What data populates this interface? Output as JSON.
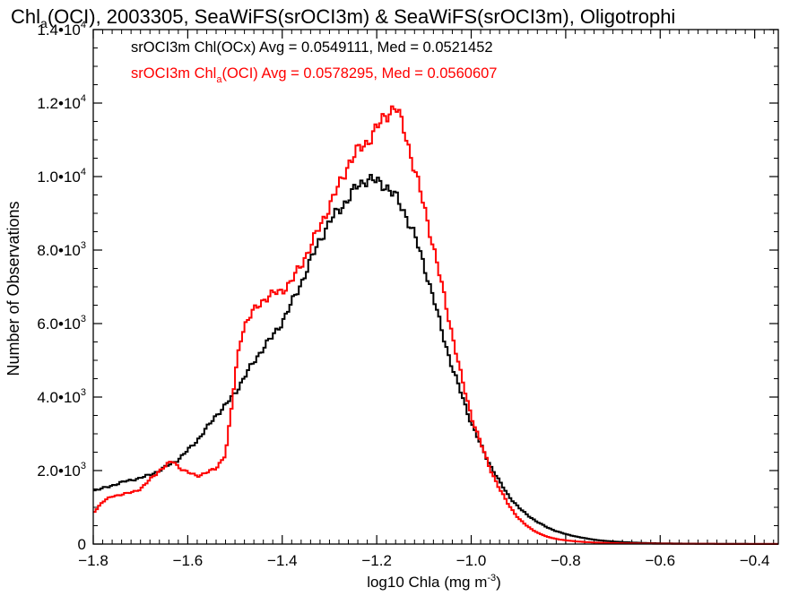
{
  "chart_data": {
    "type": "line",
    "title": {
      "prefix": "Chl",
      "subscript": "a",
      "rest": "(OCI), 2003305, SeaWiFS(srOCI3m) & SeaWiFS(srOCI3m), Oligotrophi"
    },
    "xlabel": {
      "main": "log10 Chla (mg m",
      "sup": "-3",
      "close": ")"
    },
    "ylabel": "Number of Observations",
    "xlim": [
      -1.8,
      -0.35
    ],
    "ylim": [
      0,
      14000
    ],
    "x_ticks": [
      {
        "value": -1.8,
        "label": "−1.8"
      },
      {
        "value": -1.6,
        "label": "−1.6"
      },
      {
        "value": -1.4,
        "label": "−1.4"
      },
      {
        "value": -1.2,
        "label": "−1.2"
      },
      {
        "value": -1.0,
        "label": "−1.0"
      },
      {
        "value": -0.8,
        "label": "−0.8"
      },
      {
        "value": -0.6,
        "label": "−0.6"
      },
      {
        "value": -0.4,
        "label": "−0.4"
      }
    ],
    "y_ticks": [
      {
        "value": 0,
        "label": "0"
      },
      {
        "value": 2000,
        "label": "2.0•10",
        "exp": "3"
      },
      {
        "value": 4000,
        "label": "4.0•10",
        "exp": "3"
      },
      {
        "value": 6000,
        "label": "6.0•10",
        "exp": "3"
      },
      {
        "value": 8000,
        "label": "8.0•10",
        "exp": "3"
      },
      {
        "value": 10000,
        "label": "1.0•10",
        "exp": "4"
      },
      {
        "value": 12000,
        "label": "1.2•10",
        "exp": "4"
      },
      {
        "value": 14000,
        "label": "1.4•10",
        "exp": "4"
      }
    ],
    "legend": [
      {
        "pre": "srOCI3m Chl",
        "sub": "",
        "post": "(OCx) Avg = 0.0549111, Med = 0.0521452",
        "color": "#000000"
      },
      {
        "pre": "srOCI3m Chl",
        "sub": "a",
        "post": "(OCI) Avg = 0.0578295, Med = 0.0560607",
        "color": "#ff0000"
      }
    ],
    "series": [
      {
        "color": "#000000",
        "points": [
          [
            -1.8,
            1450
          ],
          [
            -1.77,
            1550
          ],
          [
            -1.74,
            1680
          ],
          [
            -1.72,
            1740
          ],
          [
            -1.7,
            1800
          ],
          [
            -1.68,
            1880
          ],
          [
            -1.66,
            2000
          ],
          [
            -1.64,
            2150
          ],
          [
            -1.62,
            2300
          ],
          [
            -1.6,
            2550
          ],
          [
            -1.58,
            2820
          ],
          [
            -1.56,
            3150
          ],
          [
            -1.54,
            3500
          ],
          [
            -1.52,
            3780
          ],
          [
            -1.5,
            4100
          ],
          [
            -1.48,
            4550
          ],
          [
            -1.46,
            4950
          ],
          [
            -1.44,
            5350
          ],
          [
            -1.42,
            5650
          ],
          [
            -1.4,
            6050
          ],
          [
            -1.38,
            6550
          ],
          [
            -1.36,
            7100
          ],
          [
            -1.34,
            7700
          ],
          [
            -1.32,
            8300
          ],
          [
            -1.3,
            8750
          ],
          [
            -1.28,
            9100
          ],
          [
            -1.26,
            9400
          ],
          [
            -1.24,
            9750
          ],
          [
            -1.22,
            9950
          ],
          [
            -1.2,
            9850
          ],
          [
            -1.18,
            9750
          ],
          [
            -1.16,
            9450
          ],
          [
            -1.14,
            9000
          ],
          [
            -1.12,
            8400
          ],
          [
            -1.1,
            7600
          ],
          [
            -1.08,
            6700
          ],
          [
            -1.06,
            5700
          ],
          [
            -1.04,
            4800
          ],
          [
            -1.02,
            4050
          ],
          [
            -1.0,
            3300
          ],
          [
            -0.98,
            2700
          ],
          [
            -0.96,
            2150
          ],
          [
            -0.94,
            1700
          ],
          [
            -0.92,
            1300
          ],
          [
            -0.9,
            1000
          ],
          [
            -0.88,
            780
          ],
          [
            -0.86,
            600
          ],
          [
            -0.84,
            460
          ],
          [
            -0.82,
            350
          ],
          [
            -0.8,
            270
          ],
          [
            -0.78,
            210
          ],
          [
            -0.76,
            160
          ],
          [
            -0.74,
            120
          ],
          [
            -0.72,
            90
          ],
          [
            -0.7,
            70
          ],
          [
            -0.68,
            55
          ],
          [
            -0.66,
            42
          ],
          [
            -0.64,
            32
          ],
          [
            -0.62,
            25
          ],
          [
            -0.6,
            20
          ],
          [
            -0.56,
            14
          ],
          [
            -0.52,
            10
          ],
          [
            -0.46,
            6
          ],
          [
            -0.4,
            4
          ],
          [
            -0.35,
            3
          ]
        ]
      },
      {
        "color": "#ff0000",
        "points": [
          [
            -1.8,
            850
          ],
          [
            -1.78,
            1150
          ],
          [
            -1.76,
            1300
          ],
          [
            -1.74,
            1350
          ],
          [
            -1.72,
            1400
          ],
          [
            -1.7,
            1500
          ],
          [
            -1.68,
            1750
          ],
          [
            -1.66,
            2000
          ],
          [
            -1.64,
            2200
          ],
          [
            -1.63,
            2250
          ],
          [
            -1.62,
            2100
          ],
          [
            -1.6,
            1950
          ],
          [
            -1.58,
            1850
          ],
          [
            -1.56,
            1950
          ],
          [
            -1.54,
            2050
          ],
          [
            -1.52,
            2450
          ],
          [
            -1.51,
            3400
          ],
          [
            -1.5,
            4500
          ],
          [
            -1.49,
            5500
          ],
          [
            -1.48,
            5950
          ],
          [
            -1.46,
            6350
          ],
          [
            -1.44,
            6650
          ],
          [
            -1.42,
            6800
          ],
          [
            -1.4,
            6900
          ],
          [
            -1.38,
            7150
          ],
          [
            -1.36,
            7600
          ],
          [
            -1.34,
            8100
          ],
          [
            -1.32,
            8650
          ],
          [
            -1.3,
            9200
          ],
          [
            -1.28,
            9750
          ],
          [
            -1.26,
            10350
          ],
          [
            -1.24,
            10700
          ],
          [
            -1.22,
            10950
          ],
          [
            -1.2,
            11300
          ],
          [
            -1.18,
            11700
          ],
          [
            -1.16,
            11900
          ],
          [
            -1.14,
            11200
          ],
          [
            -1.12,
            10200
          ],
          [
            -1.1,
            9200
          ],
          [
            -1.08,
            8100
          ],
          [
            -1.06,
            6900
          ],
          [
            -1.04,
            5700
          ],
          [
            -1.02,
            4500
          ],
          [
            -1.0,
            3500
          ],
          [
            -0.98,
            2750
          ],
          [
            -0.96,
            2050
          ],
          [
            -0.94,
            1500
          ],
          [
            -0.92,
            1050
          ],
          [
            -0.9,
            700
          ],
          [
            -0.88,
            470
          ],
          [
            -0.86,
            310
          ],
          [
            -0.84,
            200
          ],
          [
            -0.82,
            140
          ],
          [
            -0.8,
            100
          ],
          [
            -0.78,
            75
          ],
          [
            -0.76,
            55
          ],
          [
            -0.74,
            42
          ],
          [
            -0.72,
            32
          ],
          [
            -0.7,
            25
          ],
          [
            -0.68,
            20
          ],
          [
            -0.64,
            13
          ],
          [
            -0.6,
            9
          ],
          [
            -0.54,
            6
          ],
          [
            -0.46,
            4
          ],
          [
            -0.35,
            2
          ]
        ]
      }
    ]
  }
}
